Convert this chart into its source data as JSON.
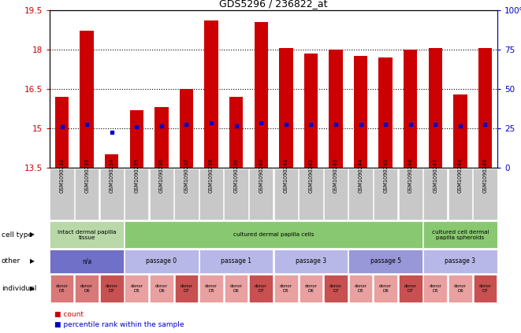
{
  "title": "GDS5296 / 236822_at",
  "samples": [
    "GSM1090232",
    "GSM1090233",
    "GSM1090234",
    "GSM1090235",
    "GSM1090236",
    "GSM1090237",
    "GSM1090238",
    "GSM1090239",
    "GSM1090240",
    "GSM1090241",
    "GSM1090242",
    "GSM1090243",
    "GSM1090244",
    "GSM1090245",
    "GSM1090246",
    "GSM1090247",
    "GSM1090248",
    "GSM1090249"
  ],
  "bar_heights": [
    16.2,
    18.7,
    14.0,
    15.7,
    15.8,
    16.5,
    19.1,
    16.2,
    19.05,
    18.05,
    17.85,
    18.0,
    17.75,
    17.7,
    18.0,
    18.05,
    16.3,
    18.05
  ],
  "blue_dot_pos": [
    15.05,
    15.15,
    14.85,
    15.05,
    15.1,
    15.15,
    15.2,
    15.1,
    15.2,
    15.15,
    15.15,
    15.15,
    15.15,
    15.15,
    15.15,
    15.15,
    15.1,
    15.15
  ],
  "bar_color": "#cc0000",
  "dot_color": "#0000cc",
  "ylim": [
    13.5,
    19.5
  ],
  "yticks": [
    13.5,
    15.0,
    16.5,
    18.0,
    19.5
  ],
  "ytick_labels": [
    "13.5",
    "15",
    "16.5",
    "18",
    "19.5"
  ],
  "right_yticks": [
    0,
    25,
    50,
    75,
    100
  ],
  "right_ytick_labels": [
    "0",
    "25",
    "50",
    "75",
    "100%"
  ],
  "hlines": [
    15.0,
    16.5,
    18.0
  ],
  "ylabel_color": "#cc0000",
  "ylabel2_color": "#0000cc",
  "cell_type_groups": [
    {
      "label": "intact dermal papilla\ntissue",
      "start": 0,
      "end": 3,
      "color": "#b8d8a8"
    },
    {
      "label": "cultured dermal papilla cells",
      "start": 3,
      "end": 15,
      "color": "#88c870"
    },
    {
      "label": "cultured cell dermal\npapilla spheroids",
      "start": 15,
      "end": 18,
      "color": "#88c870"
    }
  ],
  "other_groups": [
    {
      "label": "n/a",
      "start": 0,
      "end": 3,
      "color": "#7070c8"
    },
    {
      "label": "passage 0",
      "start": 3,
      "end": 6,
      "color": "#b8b8e8"
    },
    {
      "label": "passage 1",
      "start": 6,
      "end": 9,
      "color": "#b8b8e8"
    },
    {
      "label": "passage 3",
      "start": 9,
      "end": 12,
      "color": "#b8b8e8"
    },
    {
      "label": "passage 5",
      "start": 12,
      "end": 15,
      "color": "#9898d8"
    },
    {
      "label": "passage 3",
      "start": 15,
      "end": 18,
      "color": "#b8b8e8"
    }
  ],
  "individual_donors": [
    "donor\nD5",
    "donor\nD6",
    "donor\nD7",
    "donor\nD5",
    "donor\nD6",
    "donor\nD7",
    "donor\nD5",
    "donor\nD6",
    "donor\nD7",
    "donor\nD5",
    "donor\nD6",
    "donor\nD7",
    "donor\nD5",
    "donor\nD6",
    "donor\nD7",
    "donor\nD5",
    "donor\nD6",
    "donor\nD7"
  ],
  "individual_colors": [
    "#d87878",
    "#d87878",
    "#c85050",
    "#e8a0a0",
    "#e8a0a0",
    "#c85050",
    "#e8a0a0",
    "#e8a0a0",
    "#c85050",
    "#e8a0a0",
    "#e8a0a0",
    "#c85050",
    "#e8a0a0",
    "#e8a0a0",
    "#c85050",
    "#e8a0a0",
    "#e8a0a0",
    "#c85050"
  ],
  "bar_width": 0.55,
  "tick_bg": "#c8c8c8"
}
